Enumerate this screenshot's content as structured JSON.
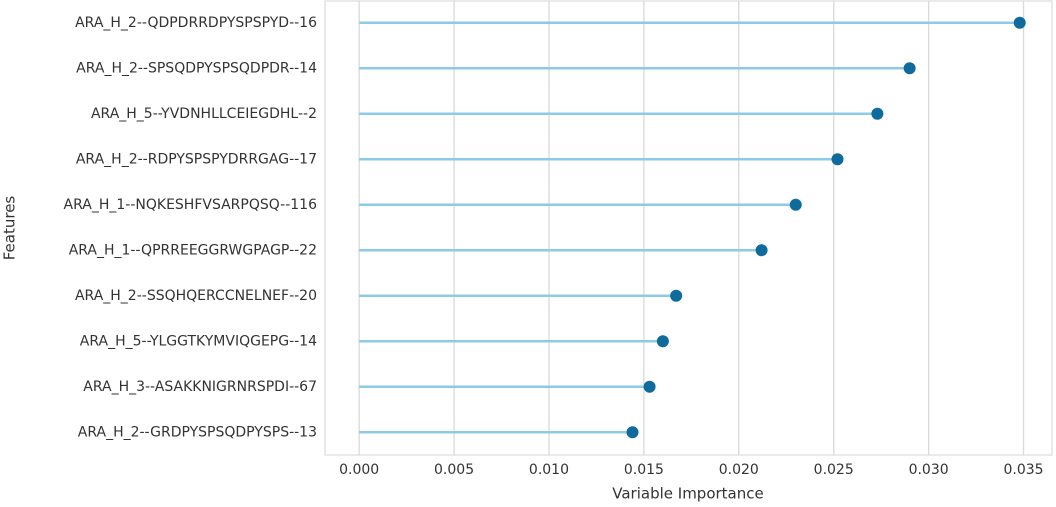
{
  "chart_data": {
    "type": "lollipop",
    "orientation": "horizontal",
    "xlabel": "Variable Importance",
    "ylabel": "Features",
    "categories": [
      "ARA_H_2--QDPDRRDPYSPSPYD--16",
      "ARA_H_2--SPSQDPYSPSQDPDR--14",
      "ARA_H_5--YVDNHLLCEIEGDHL--2",
      "ARA_H_2--RDPYSPSPYDRRGAG--17",
      "ARA_H_1--NQKESHFVSARPQSQ--116",
      "ARA_H_1--QPRREEGGRWGPAGP--22",
      "ARA_H_2--SSQHQERCCNELNEF--20",
      "ARA_H_5--YLGGTKYMVIQGEPG--14",
      "ARA_H_3--ASAKKNIGRNRSPDI--67",
      "ARA_H_2--GRDPYSPSQDPYSPS--13"
    ],
    "values": [
      0.0348,
      0.029,
      0.0273,
      0.0252,
      0.023,
      0.0212,
      0.0167,
      0.016,
      0.0153,
      0.0144
    ],
    "line_color": "#8ccae6",
    "marker_color": "#0e6b9c",
    "xlim": [
      -0.0018,
      0.0365
    ],
    "xticks": [
      {
        "value": 0,
        "label": "0.000"
      },
      0.005,
      {
        "value": 0.01,
        "label": "0.010"
      },
      0.015,
      {
        "value": 0.02,
        "label": "0.020"
      },
      0.025,
      {
        "value": 0.03,
        "label": "0.030"
      },
      0.035
    ],
    "grid": true
  }
}
